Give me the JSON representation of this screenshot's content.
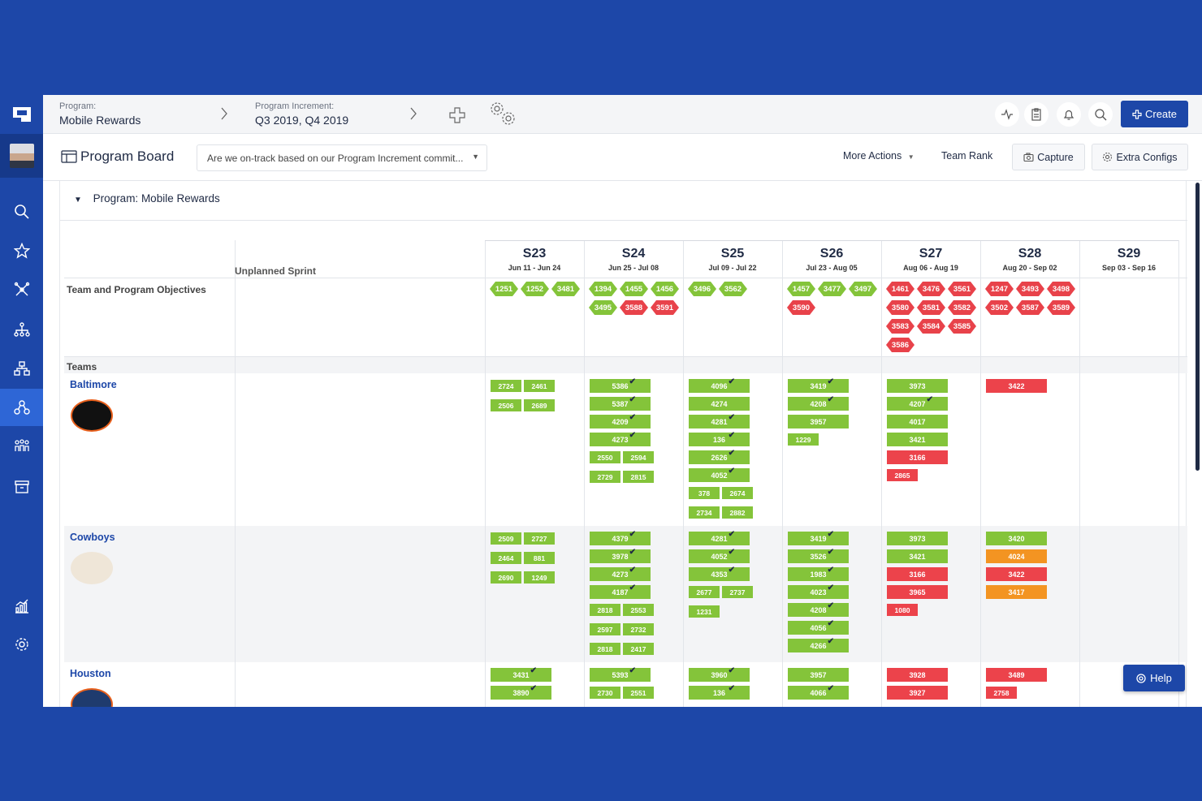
{
  "topbar": {
    "program_caption": "Program:",
    "program_value": "Mobile Rewards",
    "pi_caption": "Program Increment:",
    "pi_value": "Q3 2019, Q4 2019",
    "create_label": "Create",
    "icons": [
      "plus-icon",
      "settings-gears-icon",
      "activity-icon",
      "clipboard-icon",
      "bell-icon",
      "search-icon"
    ]
  },
  "pagehead": {
    "title": "Program Board",
    "select_value": "Are we on-track based on our Program Increment commit...",
    "more_actions": "More Actions",
    "team_rank": "Team Rank",
    "capture": "Capture",
    "extra_configs": "Extra Configs"
  },
  "board": {
    "program_title": "Program: Mobile Rewards",
    "unplanned_label": "Unplanned Sprint",
    "objectives_label": "Team and Program Objectives",
    "teams_label": "Teams",
    "help_label": "Help",
    "sprints": [
      {
        "name": "S23",
        "dates": "Jun 11 - Jun 24"
      },
      {
        "name": "S24",
        "dates": "Jun 25 - Jul 08"
      },
      {
        "name": "S25",
        "dates": "Jul 09 - Jul 22"
      },
      {
        "name": "S26",
        "dates": "Jul 23 - Aug 05"
      },
      {
        "name": "S27",
        "dates": "Aug 06 - Aug 19"
      },
      {
        "name": "S28",
        "dates": "Aug 20 - Sep 02"
      },
      {
        "name": "S29",
        "dates": "Sep 03 - Sep 16"
      }
    ],
    "objectives": [
      [
        [
          "1251",
          "g"
        ],
        [
          "1252",
          "g"
        ],
        [
          "3481",
          "g"
        ]
      ],
      [
        [
          "1394",
          "g"
        ],
        [
          "1455",
          "g"
        ],
        [
          "1456",
          "g"
        ],
        [
          "3495",
          "g"
        ],
        [
          "3588",
          "r"
        ],
        [
          "3591",
          "r"
        ]
      ],
      [
        [
          "3496",
          "g"
        ],
        [
          "3562",
          "g"
        ]
      ],
      [
        [
          "1457",
          "g"
        ],
        [
          "3477",
          "g"
        ],
        [
          "3497",
          "g"
        ],
        [
          "3590",
          "r"
        ]
      ],
      [
        [
          "1461",
          "r"
        ],
        [
          "3476",
          "r"
        ],
        [
          "3561",
          "r"
        ],
        [
          "3580",
          "r"
        ],
        [
          "3581",
          "r"
        ],
        [
          "3582",
          "r"
        ],
        [
          "3583",
          "r"
        ],
        [
          "3584",
          "r"
        ],
        [
          "3585",
          "r"
        ],
        [
          "3586",
          "r"
        ]
      ],
      [
        [
          "1247",
          "r"
        ],
        [
          "3493",
          "r"
        ],
        [
          "3498",
          "r"
        ],
        [
          "3502",
          "r"
        ],
        [
          "3587",
          "r"
        ],
        [
          "3589",
          "r"
        ]
      ],
      []
    ],
    "teams": [
      {
        "name": "Baltimore",
        "sprints": [
          {
            "cards": [],
            "minis": [
              [
                "2724",
                "g"
              ],
              [
                "2461",
                "g"
              ],
              [
                "2506",
                "g"
              ],
              [
                "2689",
                "g"
              ]
            ]
          },
          {
            "cards": [
              [
                "5386",
                "g",
                true
              ],
              [
                "5387",
                "g",
                true
              ],
              [
                "4209",
                "g",
                true
              ],
              [
                "4273",
                "g",
                true
              ]
            ],
            "minis": [
              [
                "2550",
                "g"
              ],
              [
                "2594",
                "g"
              ],
              [
                "2729",
                "g"
              ],
              [
                "2815",
                "g"
              ]
            ]
          },
          {
            "cards": [
              [
                "4096",
                "g",
                true
              ],
              [
                "4274",
                "g",
                false
              ],
              [
                "4281",
                "g",
                true
              ],
              [
                "136",
                "g",
                true
              ],
              [
                "2626",
                "g",
                true
              ],
              [
                "4052",
                "g",
                true
              ]
            ],
            "minis": [
              [
                "378",
                "g"
              ],
              [
                "2674",
                "g"
              ],
              [
                "2734",
                "g"
              ],
              [
                "2882",
                "g"
              ]
            ]
          },
          {
            "cards": [
              [
                "3419",
                "g",
                true
              ],
              [
                "4208",
                "g",
                true
              ],
              [
                "3957",
                "g",
                false
              ]
            ],
            "minis": [
              [
                "1229",
                "g"
              ]
            ]
          },
          {
            "cards": [
              [
                "3973",
                "g",
                false
              ],
              [
                "4207",
                "g",
                true
              ],
              [
                "4017",
                "g",
                false
              ],
              [
                "3421",
                "g",
                false
              ],
              [
                "3166",
                "r",
                false
              ]
            ],
            "minis": [
              [
                "2865",
                "r"
              ]
            ]
          },
          {
            "cards": [
              [
                "3422",
                "r",
                false
              ]
            ],
            "minis": []
          },
          {
            "cards": [],
            "minis": []
          }
        ]
      },
      {
        "name": "Cowboys",
        "sprints": [
          {
            "cards": [],
            "minis": [
              [
                "2509",
                "g"
              ],
              [
                "2727",
                "g"
              ],
              [
                "2464",
                "g"
              ],
              [
                "881",
                "g"
              ],
              [
                "2690",
                "g"
              ],
              [
                "1249",
                "g"
              ]
            ]
          },
          {
            "cards": [
              [
                "4379",
                "g",
                true
              ],
              [
                "3978",
                "g",
                true
              ],
              [
                "4273",
                "g",
                true
              ],
              [
                "4187",
                "g",
                true
              ]
            ],
            "minis": [
              [
                "2818",
                "g"
              ],
              [
                "2553",
                "g"
              ],
              [
                "2597",
                "g"
              ],
              [
                "2732",
                "g"
              ],
              [
                "2818",
                "g"
              ],
              [
                "2417",
                "g"
              ]
            ]
          },
          {
            "cards": [
              [
                "4281",
                "g",
                true
              ],
              [
                "4052",
                "g",
                true
              ],
              [
                "4353",
                "g",
                true
              ]
            ],
            "minis": [
              [
                "2677",
                "g"
              ],
              [
                "2737",
                "g"
              ],
              [
                "1231",
                "g"
              ]
            ]
          },
          {
            "cards": [
              [
                "3419",
                "g",
                true
              ],
              [
                "3526",
                "g",
                true
              ],
              [
                "1983",
                "g",
                true
              ],
              [
                "4023",
                "g",
                true
              ],
              [
                "4208",
                "g",
                true
              ],
              [
                "4056",
                "g",
                true
              ],
              [
                "4266",
                "g",
                true
              ]
            ],
            "minis": []
          },
          {
            "cards": [
              [
                "3973",
                "g",
                false
              ],
              [
                "3421",
                "g",
                false
              ],
              [
                "3166",
                "r",
                false
              ],
              [
                "3965",
                "r",
                false
              ]
            ],
            "minis": [
              [
                "1080",
                "r"
              ]
            ]
          },
          {
            "cards": [
              [
                "3420",
                "g",
                false
              ],
              [
                "4024",
                "o",
                false
              ],
              [
                "3422",
                "r",
                false
              ],
              [
                "3417",
                "o",
                false
              ]
            ],
            "minis": []
          },
          {
            "cards": [],
            "minis": []
          }
        ]
      },
      {
        "name": "Houston",
        "sprints": [
          {
            "cards": [
              [
                "3431",
                "g",
                true
              ],
              [
                "3890",
                "g",
                true
              ]
            ],
            "minis": []
          },
          {
            "cards": [
              [
                "5393",
                "g",
                true
              ]
            ],
            "minis": [
              [
                "2730",
                "g"
              ],
              [
                "2551",
                "g"
              ]
            ]
          },
          {
            "cards": [
              [
                "3960",
                "g",
                true
              ],
              [
                "136",
                "g",
                true
              ]
            ],
            "minis": []
          },
          {
            "cards": [
              [
                "3957",
                "g",
                false
              ],
              [
                "4066",
                "g",
                true
              ]
            ],
            "minis": []
          },
          {
            "cards": [
              [
                "3928",
                "r",
                false
              ],
              [
                "3927",
                "r",
                false
              ]
            ],
            "minis": []
          },
          {
            "cards": [
              [
                "3489",
                "r",
                false
              ]
            ],
            "minis": [
              [
                "2758",
                "r"
              ]
            ]
          },
          {
            "cards": [],
            "minis": []
          }
        ]
      }
    ]
  },
  "sidebar_icons": [
    "app-logo-icon",
    "search-icon",
    "star-icon",
    "network-icon",
    "hierarchy-icon",
    "org-chart-icon",
    "program-board-icon",
    "teams-icon",
    "archive-icon",
    "reports-icon",
    "settings-icon"
  ],
  "colors": {
    "brand": "#1d47a8",
    "green": "#84c43a",
    "red": "#ec434b",
    "orange": "#f39422"
  }
}
